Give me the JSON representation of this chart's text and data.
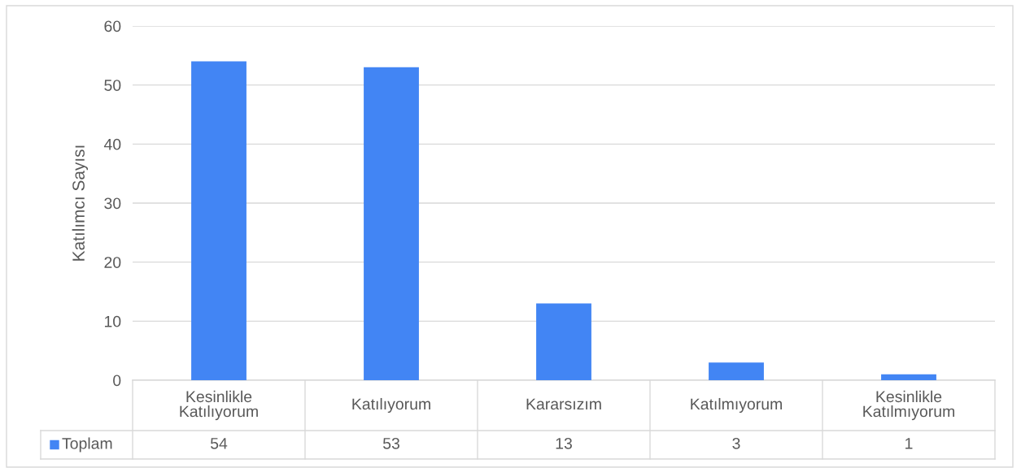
{
  "chart_data": {
    "type": "bar",
    "ylabel": "Katılımcı Sayısı",
    "categories": [
      "Kesinlikle\nKatılıyorum",
      "Katılıyorum",
      "Kararsızım",
      "Katılmıyorum",
      "Kesinlikle\nKatılmıyorum"
    ],
    "series": [
      {
        "name": "Toplam",
        "color": "#4285f4",
        "values": [
          54,
          53,
          13,
          3,
          1
        ]
      }
    ],
    "ylim": [
      0,
      60
    ],
    "yticks": [
      0,
      10,
      20,
      30,
      40,
      50,
      60
    ],
    "grid": "y",
    "legend": "bottom left",
    "data_labels": true
  }
}
